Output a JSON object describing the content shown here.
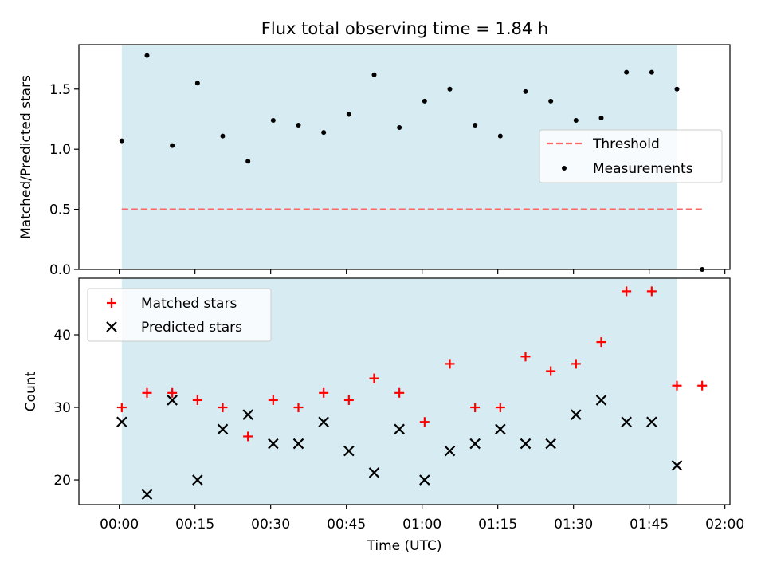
{
  "title": "Flux total observing time = 1.84 h",
  "xlabel": "Time (UTC)",
  "xtick_labels": [
    "00:00",
    "00:15",
    "00:30",
    "00:45",
    "01:00",
    "01:15",
    "01:30",
    "01:45",
    "02:00"
  ],
  "colors": {
    "shade": "#add8e6",
    "threshold": "#ff6666",
    "measurement": "#000000",
    "matched": "#ff0000",
    "predicted": "#000000"
  },
  "chart_data": [
    {
      "type": "scatter",
      "ylabel": "Matched/Predicted stars",
      "xlim_minutes": [
        -8,
        121
      ],
      "ylim": [
        0,
        1.87
      ],
      "yticks": [
        0.0,
        0.5,
        1.0,
        1.5
      ],
      "ytick_labels": [
        "0.0",
        "0.5",
        "1.0",
        "1.5"
      ],
      "shaded_interval_minutes": [
        0.5,
        110.5
      ],
      "legend_position": "center-right",
      "legend": [
        "Threshold",
        "Measurements"
      ],
      "threshold": {
        "name": "Threshold",
        "y": 0.5,
        "x_range_minutes": [
          0.5,
          115.5
        ]
      },
      "series": [
        {
          "name": "Measurements",
          "x_minutes": [
            0.5,
            5.5,
            10.5,
            15.5,
            20.5,
            25.5,
            30.5,
            35.5,
            40.5,
            45.5,
            50.5,
            55.5,
            60.5,
            65.5,
            70.5,
            75.5,
            80.5,
            85.5,
            90.5,
            95.5,
            100.5,
            105.5,
            110.5,
            115.5
          ],
          "values": [
            1.07,
            1.78,
            1.03,
            1.55,
            1.11,
            0.9,
            1.24,
            1.2,
            1.14,
            1.29,
            1.62,
            1.18,
            1.4,
            1.5,
            1.2,
            1.11,
            1.48,
            1.4,
            1.24,
            1.26,
            1.64,
            1.64,
            1.5,
            0.0
          ]
        }
      ]
    },
    {
      "type": "scatter",
      "ylabel": "Count",
      "xlim_minutes": [
        -8,
        121
      ],
      "ylim": [
        16.6,
        47.8
      ],
      "yticks": [
        20,
        30,
        40
      ],
      "ytick_labels": [
        "20",
        "30",
        "40"
      ],
      "shaded_interval_minutes": [
        0.5,
        110.5
      ],
      "legend_position": "upper-left",
      "legend": [
        "Matched stars",
        "Predicted stars"
      ],
      "series": [
        {
          "name": "Matched stars",
          "marker": "plus",
          "x_minutes": [
            0.5,
            5.5,
            10.5,
            15.5,
            20.5,
            25.5,
            30.5,
            35.5,
            40.5,
            45.5,
            50.5,
            55.5,
            60.5,
            65.5,
            70.5,
            75.5,
            80.5,
            85.5,
            90.5,
            95.5,
            100.5,
            105.5,
            110.5,
            115.5
          ],
          "values": [
            30,
            32,
            32,
            31,
            30,
            26,
            31,
            30,
            32,
            31,
            34,
            32,
            28,
            36,
            30,
            30,
            37,
            35,
            36,
            39,
            46,
            46,
            33,
            33
          ]
        },
        {
          "name": "Predicted stars",
          "marker": "x",
          "x_minutes": [
            0.5,
            5.5,
            10.5,
            15.5,
            20.5,
            25.5,
            30.5,
            35.5,
            40.5,
            45.5,
            50.5,
            55.5,
            60.5,
            65.5,
            70.5,
            75.5,
            80.5,
            85.5,
            90.5,
            95.5,
            100.5,
            105.5,
            110.5
          ],
          "values": [
            28,
            18,
            31,
            20,
            27,
            29,
            25,
            25,
            28,
            24,
            21,
            27,
            20,
            24,
            25,
            27,
            25,
            25,
            29,
            31,
            28,
            28,
            22
          ]
        }
      ]
    }
  ]
}
